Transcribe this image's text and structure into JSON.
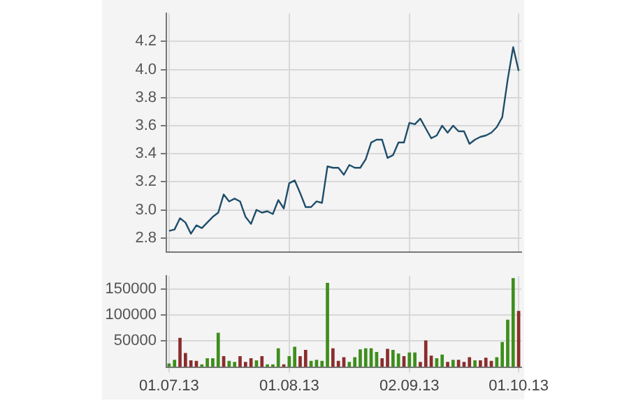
{
  "chart_data": [
    {
      "type": "line",
      "categories": [
        "01.07.13",
        null,
        null,
        null,
        null,
        null,
        null,
        null,
        null,
        null,
        null,
        null,
        null,
        null,
        null,
        null,
        null,
        null,
        null,
        null,
        null,
        null,
        "01.08.13",
        null,
        null,
        null,
        null,
        null,
        null,
        null,
        null,
        null,
        null,
        null,
        null,
        null,
        null,
        null,
        null,
        null,
        null,
        null,
        null,
        null,
        "02.09.13",
        null,
        null,
        null,
        null,
        null,
        null,
        null,
        null,
        null,
        null,
        null,
        null,
        null,
        null,
        null,
        null,
        null,
        null,
        null,
        "01.10.13"
      ],
      "series": [
        {
          "color": "#1f4e6b",
          "values": [
            2.85,
            2.86,
            2.94,
            2.91,
            2.83,
            2.89,
            2.87,
            2.91,
            2.95,
            2.98,
            3.11,
            3.06,
            3.08,
            3.06,
            2.95,
            2.9,
            3.0,
            2.98,
            2.99,
            2.97,
            3.07,
            3.01,
            3.19,
            3.21,
            3.12,
            3.02,
            3.02,
            3.06,
            3.05,
            3.31,
            3.3,
            3.3,
            3.25,
            3.32,
            3.3,
            3.3,
            3.36,
            3.48,
            3.5,
            3.5,
            3.37,
            3.39,
            3.48,
            3.48,
            3.62,
            3.61,
            3.65,
            3.58,
            3.51,
            3.53,
            3.6,
            3.55,
            3.6,
            3.56,
            3.56,
            3.47,
            3.5,
            3.52,
            3.53,
            3.55,
            3.59,
            3.66,
            3.93,
            4.16,
            3.99
          ]
        }
      ],
      "ylim": [
        2.7,
        4.4
      ],
      "yticks": [
        2.8,
        {
          "value": 3,
          "label": "3.0"
        },
        3.2,
        3.4,
        3.6,
        3.8,
        {
          "value": 4,
          "label": "4.0"
        },
        4.2
      ],
      "grid": true,
      "tick_labels": "y",
      "marker": "none"
    },
    {
      "type": "bar",
      "categories": [
        "01.07.13",
        null,
        null,
        null,
        null,
        null,
        null,
        null,
        null,
        null,
        null,
        null,
        null,
        null,
        null,
        null,
        null,
        null,
        null,
        null,
        null,
        null,
        "01.08.13",
        null,
        null,
        null,
        null,
        null,
        null,
        null,
        null,
        null,
        null,
        null,
        null,
        null,
        null,
        null,
        null,
        null,
        null,
        null,
        null,
        null,
        "02.09.13",
        null,
        null,
        null,
        null,
        null,
        null,
        null,
        null,
        null,
        null,
        null,
        null,
        null,
        null,
        null,
        null,
        null,
        null,
        null,
        "01.10.13"
      ],
      "series": [
        {
          "colors": [
            "#3e8e1c",
            "#3e8e1c",
            "#8b2d2d",
            "#8b2d2d",
            "#8b2d2d",
            "#8b2d2d",
            "#3e8e1c",
            "#3e8e1c",
            "#3e8e1c",
            "#3e8e1c",
            "#8b2d2d",
            "#3e8e1c",
            "#3e8e1c",
            "#8b2d2d",
            "#8b2d2d",
            "#8b2d2d",
            "#3e8e1c",
            "#8b2d2d",
            "#3e8e1c",
            "#3e8e1c",
            "#3e8e1c",
            "#8b2d2d",
            "#3e8e1c",
            "#3e8e1c",
            "#8b2d2d",
            "#8b2d2d",
            "#3e8e1c",
            "#3e8e1c",
            "#3e8e1c",
            "#3e8e1c",
            "#8b2d2d",
            "#8b2d2d",
            "#8b2d2d",
            "#3e8e1c",
            "#3e8e1c",
            "#3e8e1c",
            "#3e8e1c",
            "#3e8e1c",
            "#3e8e1c",
            "#8b2d2d",
            "#8b2d2d",
            "#3e8e1c",
            "#3e8e1c",
            "#8b2d2d",
            "#3e8e1c",
            "#3e8e1c",
            "#8b2d2d",
            "#8b2d2d",
            "#8b2d2d",
            "#3e8e1c",
            "#3e8e1c",
            "#8b2d2d",
            "#3e8e1c",
            "#8b2d2d",
            "#8b2d2d",
            "#8b2d2d",
            "#3e8e1c",
            "#8b2d2d",
            "#8b2d2d",
            "#8b2d2d",
            "#3e8e1c",
            "#3e8e1c",
            "#3e8e1c",
            "#3e8e1c",
            "#8b2d2d"
          ],
          "values": [
            7000,
            14000,
            56000,
            27000,
            13000,
            12000,
            5000,
            17000,
            17000,
            66000,
            21000,
            12000,
            10000,
            21000,
            10000,
            17000,
            13000,
            21000,
            5000,
            5000,
            36000,
            5000,
            21000,
            39000,
            21000,
            33000,
            12000,
            14000,
            12000,
            162000,
            36000,
            12000,
            19000,
            10000,
            19000,
            34000,
            36000,
            36000,
            29000,
            17000,
            35000,
            33000,
            26000,
            21000,
            28000,
            28000,
            10000,
            51000,
            22000,
            17000,
            24000,
            10000,
            14000,
            14000,
            10000,
            19000,
            13000,
            13000,
            18000,
            12000,
            19000,
            48000,
            91000,
            171000,
            108000
          ]
        }
      ],
      "ylim": [
        0,
        175000
      ],
      "yticks": [
        50000,
        100000,
        150000
      ],
      "grid": true
    }
  ]
}
